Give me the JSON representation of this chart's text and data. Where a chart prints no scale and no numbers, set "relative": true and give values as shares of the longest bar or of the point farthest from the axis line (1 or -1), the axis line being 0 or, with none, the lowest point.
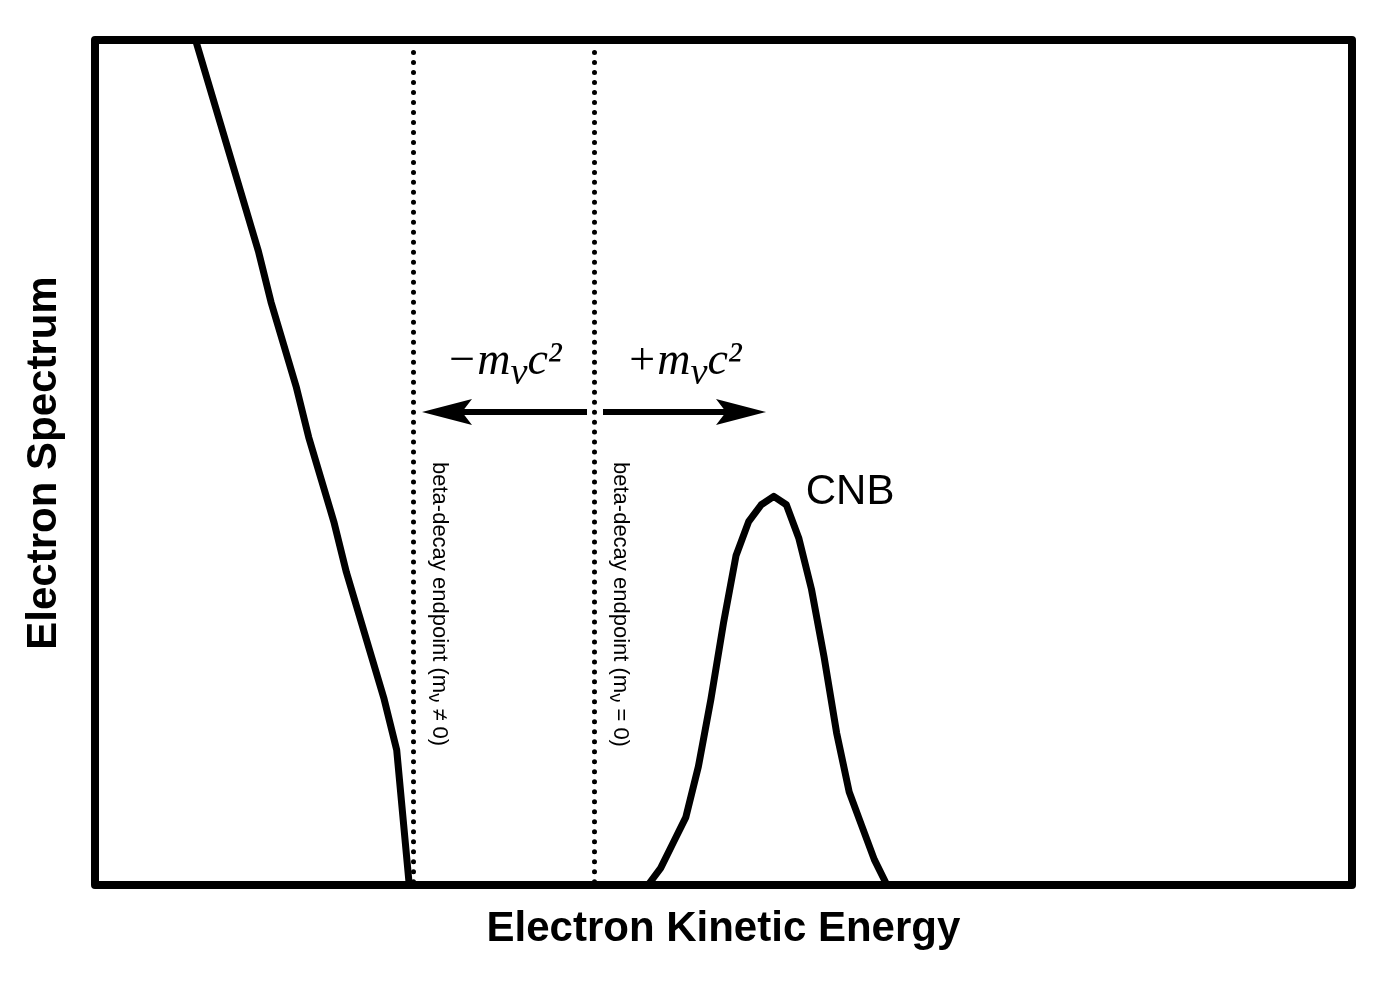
{
  "chart_data": {
    "type": "line",
    "relative": true,
    "xlabel": "Electron Kinetic Energy",
    "ylabel": "Electron Spectrum",
    "marker": "none",
    "tick_labels": false,
    "categories": [
      null,
      null,
      null,
      null,
      null,
      null,
      null,
      null,
      null,
      null,
      null,
      null,
      null,
      null,
      null,
      null,
      null,
      null,
      null,
      null,
      null,
      null,
      null,
      null,
      null,
      null,
      null,
      null,
      null,
      null,
      null,
      null,
      null,
      null,
      null,
      null,
      null,
      null,
      null,
      null,
      null,
      null,
      null,
      null,
      null,
      null,
      null,
      null,
      null,
      null,
      null,
      null,
      null,
      null,
      null,
      null,
      null,
      null,
      null,
      null,
      null,
      null,
      null,
      null,
      null,
      null,
      null,
      null,
      null,
      null,
      null,
      null,
      null,
      null,
      null,
      null,
      null,
      null,
      null,
      null,
      null,
      null,
      null,
      null,
      null,
      null,
      null,
      null,
      null,
      null,
      null,
      null,
      null,
      null,
      null,
      null,
      null,
      null,
      null,
      null,
      null
    ],
    "series": [
      {
        "color": "#000000",
        "values": [
          null,
          null,
          null,
          null,
          null,
          null,
          null,
          null,
          1,
          0.95,
          0.9,
          0.85,
          0.8,
          0.75,
          0.69,
          0.64,
          0.59,
          0.53,
          0.48,
          0.43,
          0.37,
          0.32,
          0.27,
          0.22,
          0.16,
          0,
          null,
          null,
          null,
          null,
          null,
          null,
          null,
          null,
          null,
          null,
          null,
          null,
          null,
          null,
          null,
          null,
          null,
          null,
          null,
          null,
          null,
          null,
          null,
          null,
          null,
          null,
          null,
          null,
          null,
          null,
          null,
          null,
          null,
          null,
          null,
          null,
          null,
          null,
          null,
          null,
          null,
          null,
          null,
          null,
          null,
          null,
          null,
          null,
          null,
          null,
          null,
          null,
          null,
          null,
          null,
          null,
          null,
          null,
          null,
          null,
          null,
          null,
          null,
          null,
          null,
          null,
          null,
          null,
          null,
          null,
          null,
          null,
          null,
          null,
          null
        ]
      },
      {
        "name": "CNB",
        "color": "#000000",
        "values": [
          null,
          null,
          null,
          null,
          null,
          null,
          null,
          null,
          null,
          null,
          null,
          null,
          null,
          null,
          null,
          null,
          null,
          null,
          null,
          null,
          null,
          null,
          null,
          null,
          null,
          null,
          null,
          null,
          null,
          null,
          null,
          null,
          null,
          null,
          null,
          null,
          null,
          null,
          null,
          null,
          null,
          null,
          null,
          null,
          0,
          0.02,
          0.05,
          0.08,
          0.14,
          0.22,
          0.31,
          0.39,
          0.43,
          0.45,
          0.46,
          0.45,
          0.41,
          0.35,
          0.27,
          0.18,
          0.11,
          0.07,
          0.03,
          0,
          null,
          null,
          null,
          null,
          null,
          null,
          null,
          null,
          null,
          null,
          null,
          null,
          null,
          null,
          null,
          null,
          null,
          null,
          null,
          null,
          null,
          null,
          null,
          null,
          null,
          null,
          null,
          null,
          null,
          null,
          null,
          null,
          null,
          null,
          null,
          null,
          null
        ]
      }
    ],
    "annotations": [
      "beta-decay endpoint (m$_{ν}$ ≠ 0)",
      "beta-decay endpoint (m$_{ν}$ = 0)",
      "−m$_{ν}$c²",
      "+m$_{ν}$c²"
    ]
  }
}
